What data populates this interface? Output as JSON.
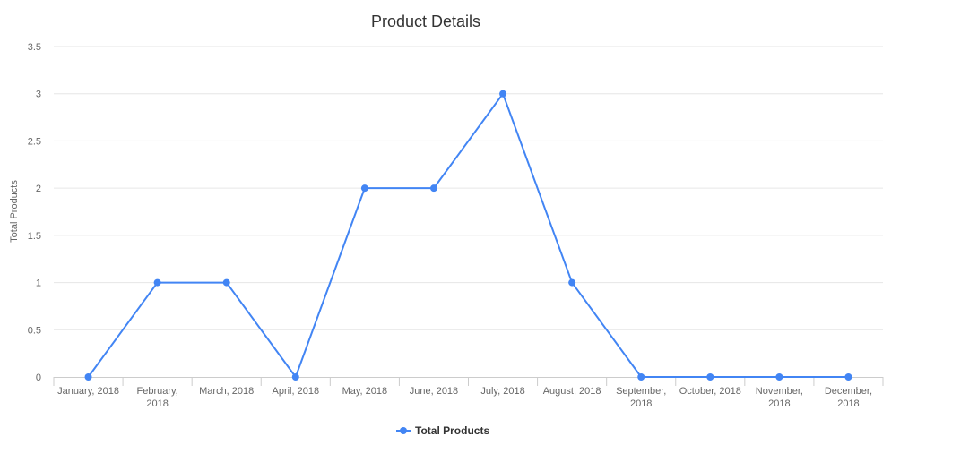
{
  "chart_data": {
    "type": "line",
    "title": "Product Details",
    "xlabel": "",
    "ylabel": "Total Products",
    "categories": [
      [
        "January, 2018"
      ],
      [
        "February,",
        "2018"
      ],
      [
        "March, 2018"
      ],
      [
        "April, 2018"
      ],
      [
        "May, 2018"
      ],
      [
        "June, 2018"
      ],
      [
        "July, 2018"
      ],
      [
        "August, 2018"
      ],
      [
        "September,",
        "2018"
      ],
      [
        "October, 2018"
      ],
      [
        "November,",
        "2018"
      ],
      [
        "December,",
        "2018"
      ]
    ],
    "series": [
      {
        "name": "Total Products",
        "color": "#4285f4",
        "values": [
          0,
          1,
          1,
          0,
          2,
          2,
          3,
          1,
          0,
          0,
          0,
          0
        ]
      }
    ],
    "yticks": [
      "0",
      "0.5",
      "1",
      "1.5",
      "2",
      "2.5",
      "3",
      "3.5"
    ],
    "ylim": [
      0,
      3.5
    ],
    "grid": true,
    "legend_position": "bottom"
  }
}
